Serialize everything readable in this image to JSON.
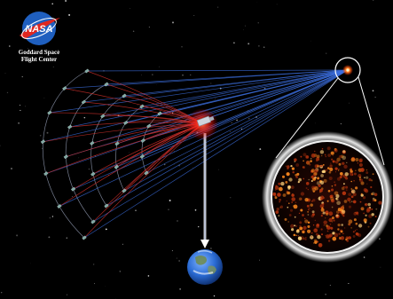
{
  "logo": {
    "wordmark": "NASA",
    "organization": "Goddard Space\nFlight Center"
  },
  "colors": {
    "background": "#000000",
    "nasa_blue": "#1f5fbf",
    "nasa_red": "#e0261f",
    "blue_rays": "#3c6fe0",
    "red_rays": "#d0302a",
    "arcs": "#9aa3b8",
    "element_markers": "#7fa9a4",
    "telescope_glow": "#ff3a2a",
    "inset_halo": "#e6e6e6",
    "inset_bright": "#ff8a1e",
    "earth_ocean": "#2a6bd4",
    "earth_land": "#6f8a4a"
  },
  "icons": {
    "logo": "nasa-meatball-icon",
    "telescope": "space-telescope-icon",
    "source": "star-source-icon",
    "planet": "earth-icon"
  }
}
